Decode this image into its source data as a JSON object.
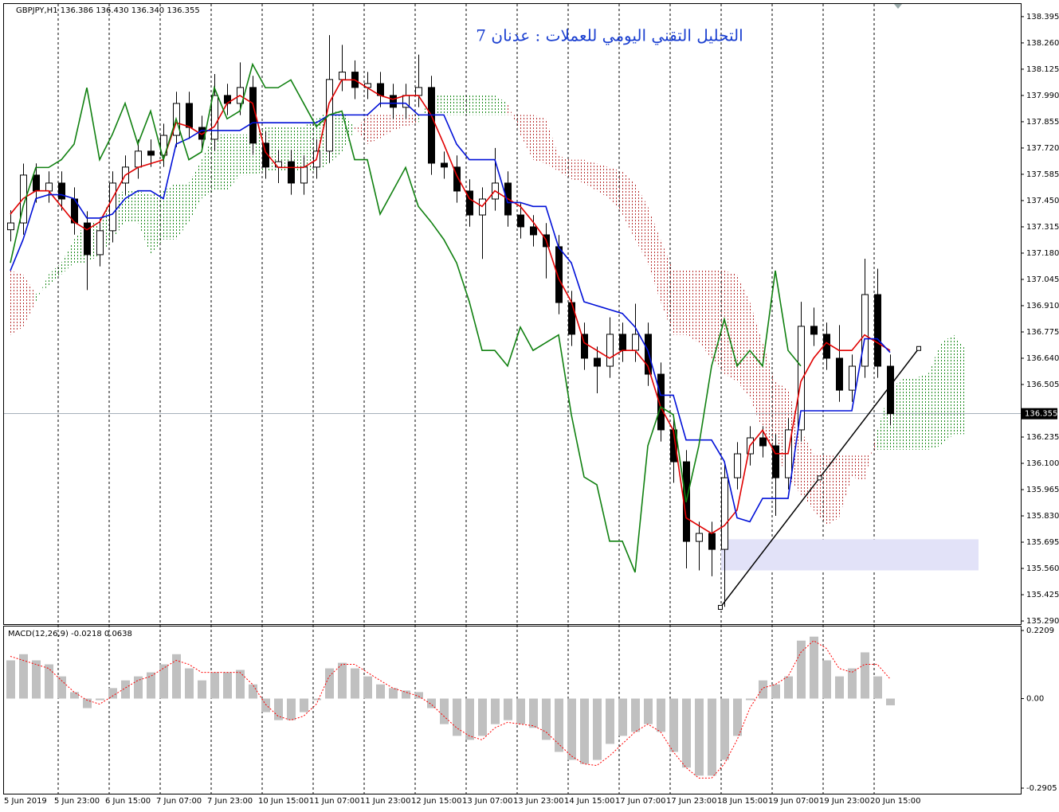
{
  "chart_data": [
    {
      "type": "candlestick",
      "title": "التحليل التقني اليومي للعملات : عدنان 7",
      "header": "GBPJPY,H1  136.386 136.430 136.340 136.355",
      "x_labels": [
        "5 Jun 2019",
        "5 Jun 23:00",
        "6 Jun 15:00",
        "7 Jun 07:00",
        "7 Jun 23:00",
        "10 Jun 15:00",
        "11 Jun 07:00",
        "11 Jun 23:00",
        "12 Jun 15:00",
        "13 Jun 07:00",
        "13 Jun 23:00",
        "14 Jun 15:00",
        "17 Jun 07:00",
        "17 Jun 23:00",
        "18 Jun 15:00",
        "19 Jun 07:00",
        "19 Jun 23:00",
        "20 Jun 15:00"
      ],
      "open": [
        137.3,
        137.335,
        137.581,
        137.499,
        137.54,
        137.458,
        137.335,
        137.172,
        137.295,
        137.54,
        137.622,
        137.704,
        137.683,
        137.785,
        137.949,
        137.826,
        137.765,
        137.99,
        137.949,
        138.031,
        137.745,
        137.622,
        137.65,
        137.54,
        137.622,
        137.704,
        138.072,
        138.11,
        138.031,
        138.051,
        137.99,
        137.929,
        137.99,
        138.031,
        137.642,
        137.622,
        137.499,
        137.376,
        137.458,
        137.54,
        137.376,
        137.315,
        137.274,
        137.213,
        136.926,
        136.763,
        136.64,
        136.599,
        136.763,
        136.681,
        136.763,
        136.558,
        136.272,
        136.108,
        135.699,
        135.74,
        135.658,
        136.026,
        136.149,
        136.231,
        136.19,
        136.026,
        136.272,
        136.804,
        136.763,
        136.64,
        136.476,
        136.599,
        136.967,
        136.599
      ],
      "high": [
        137.4,
        137.64,
        137.641,
        137.6,
        137.6,
        137.518,
        137.395,
        137.355,
        137.6,
        137.682,
        137.764,
        137.764,
        137.845,
        138.009,
        138.009,
        137.886,
        138.1,
        138.05,
        138.16,
        138.091,
        137.805,
        137.71,
        137.71,
        137.682,
        137.764,
        138.3,
        138.25,
        138.17,
        138.111,
        138.111,
        138.05,
        138.05,
        138.2,
        138.091,
        137.702,
        137.682,
        137.559,
        137.518,
        137.72,
        137.6,
        137.436,
        137.375,
        137.334,
        137.273,
        136.986,
        136.823,
        136.7,
        136.85,
        136.823,
        136.92,
        136.823,
        136.618,
        136.332,
        136.168,
        135.8,
        135.8,
        136.1,
        136.209,
        136.291,
        136.291,
        136.25,
        136.332,
        136.93,
        136.9,
        136.823,
        136.81,
        136.659,
        137.151,
        137.1,
        136.659
      ],
      "low": [
        137.24,
        137.275,
        137.439,
        137.439,
        137.398,
        137.275,
        136.99,
        137.112,
        137.235,
        137.48,
        137.562,
        137.623,
        137.623,
        137.725,
        137.766,
        137.705,
        137.705,
        137.889,
        137.889,
        137.685,
        137.562,
        137.54,
        137.48,
        137.48,
        137.562,
        137.644,
        138.012,
        137.971,
        137.971,
        137.93,
        137.869,
        137.869,
        137.93,
        137.582,
        137.562,
        137.439,
        137.316,
        137.15,
        137.398,
        137.316,
        137.255,
        137.214,
        137.05,
        136.866,
        136.703,
        136.58,
        136.46,
        136.539,
        136.621,
        136.621,
        136.498,
        136.212,
        136.0,
        135.56,
        135.55,
        135.52,
        135.363,
        135.966,
        136.089,
        136.13,
        135.83,
        135.966,
        136.212,
        136.703,
        136.58,
        136.416,
        136.416,
        136.539,
        136.539,
        136.295
      ],
      "close": [
        137.335,
        137.581,
        137.499,
        137.54,
        137.458,
        137.335,
        137.172,
        137.295,
        137.54,
        137.622,
        137.704,
        137.683,
        137.785,
        137.949,
        137.826,
        137.765,
        137.99,
        137.949,
        138.031,
        137.745,
        137.622,
        137.65,
        137.54,
        137.622,
        137.704,
        138.072,
        138.11,
        138.031,
        138.051,
        137.99,
        137.929,
        137.99,
        138.031,
        137.642,
        137.622,
        137.499,
        137.376,
        137.458,
        137.54,
        137.376,
        137.315,
        137.274,
        137.213,
        136.926,
        136.763,
        136.64,
        136.599,
        136.763,
        136.681,
        136.763,
        136.558,
        136.272,
        136.108,
        135.699,
        135.74,
        135.658,
        136.026,
        136.149,
        136.231,
        136.19,
        136.026,
        136.272,
        136.804,
        136.763,
        136.64,
        136.476,
        136.599,
        136.967,
        136.599,
        136.355
      ],
      "series": [
        {
          "color": "#e00000",
          "values": [
            137.38,
            137.46,
            137.5,
            137.5,
            137.42,
            137.34,
            137.3,
            137.34,
            137.46,
            137.58,
            137.62,
            137.64,
            137.66,
            137.85,
            137.83,
            137.79,
            137.83,
            137.95,
            137.99,
            137.95,
            137.7,
            137.62,
            137.62,
            137.62,
            137.66,
            137.95,
            138.07,
            138.07,
            138.03,
            137.99,
            137.97,
            137.99,
            137.99,
            137.89,
            137.74,
            137.58,
            137.46,
            137.42,
            137.5,
            137.46,
            137.42,
            137.34,
            137.25,
            137.05,
            136.93,
            136.72,
            136.68,
            136.64,
            136.68,
            136.68,
            136.6,
            136.39,
            136.27,
            135.82,
            135.78,
            135.74,
            135.78,
            135.86,
            136.19,
            136.27,
            136.15,
            136.15,
            136.52,
            136.64,
            136.72,
            136.68,
            136.68,
            136.76,
            136.72,
            136.68
          ]
        },
        {
          "color": "#0010d8",
          "values": [
            137.09,
            137.25,
            137.46,
            137.48,
            137.48,
            137.46,
            137.36,
            137.36,
            137.38,
            137.46,
            137.5,
            137.5,
            137.46,
            137.74,
            137.77,
            137.81,
            137.81,
            137.81,
            137.81,
            137.85,
            137.85,
            137.85,
            137.85,
            137.85,
            137.85,
            137.89,
            137.89,
            137.89,
            137.89,
            137.95,
            137.95,
            137.95,
            137.89,
            137.89,
            137.89,
            137.74,
            137.66,
            137.66,
            137.66,
            137.44,
            137.44,
            137.42,
            137.42,
            137.21,
            137.13,
            136.93,
            136.91,
            136.89,
            136.87,
            136.8,
            136.68,
            136.45,
            136.45,
            136.22,
            136.22,
            136.22,
            136.11,
            135.82,
            135.8,
            135.92,
            135.92,
            135.92,
            136.37,
            136.37,
            136.37,
            136.37,
            136.37,
            136.74,
            136.74,
            136.67
          ]
        },
        {
          "color": "#108010",
          "values": [
            137.13,
            137.42,
            137.62,
            137.62,
            137.66,
            137.74,
            138.03,
            137.66,
            137.79,
            137.95,
            137.74,
            137.91,
            137.66,
            137.87,
            137.66,
            137.7,
            138.03,
            137.87,
            137.91,
            138.15,
            138.03,
            138.03,
            138.07,
            137.95,
            137.83,
            137.89,
            137.91,
            137.66,
            137.66,
            137.38,
            137.5,
            137.62,
            137.42,
            137.34,
            137.25,
            137.13,
            136.93,
            136.68,
            136.68,
            136.6,
            136.8,
            136.68,
            136.72,
            136.76,
            136.35,
            136.03,
            135.99,
            135.7,
            135.7,
            135.54,
            136.19,
            136.39,
            136.35,
            135.9,
            136.19,
            136.6,
            136.84,
            136.6,
            136.68,
            136.6,
            137.09,
            136.68,
            136.6,
            null,
            null,
            null,
            null,
            null,
            null,
            null
          ]
        }
      ],
      "cloud": {
        "span_a": [
          136.76,
          136.8,
          136.93,
          137.07,
          137.13,
          137.25,
          137.34,
          137.34,
          137.48,
          137.5,
          137.5,
          137.48,
          137.5,
          137.54,
          137.54,
          137.66,
          137.79,
          137.79,
          137.79,
          137.79,
          137.83,
          137.83,
          137.83,
          137.83,
          137.87,
          137.91,
          137.91,
          137.83,
          137.74,
          137.77,
          137.81,
          137.83,
          137.85,
          137.99,
          137.99,
          137.99,
          137.99,
          137.99,
          137.99,
          137.95,
          137.79,
          137.66,
          137.64,
          137.6,
          137.56,
          137.54,
          137.5,
          137.46,
          137.38,
          137.25,
          137.13,
          136.93,
          136.76,
          136.76,
          136.72,
          136.64,
          136.56,
          136.52,
          136.44,
          136.27,
          136.15,
          136.03,
          135.94,
          135.86,
          135.78,
          135.82,
          136.03,
          136.01,
          136.27,
          136.48,
          136.54,
          136.54,
          136.56,
          136.72,
          136.76,
          136.68
        ],
        "span_b": [
          137.09,
          137.07,
          136.97,
          137.01,
          137.07,
          137.13,
          137.13,
          137.17,
          137.25,
          137.34,
          137.34,
          137.17,
          137.25,
          137.25,
          137.34,
          137.46,
          137.5,
          137.5,
          137.58,
          137.58,
          137.6,
          137.6,
          137.6,
          137.6,
          137.6,
          137.64,
          137.7,
          137.81,
          137.89,
          137.89,
          137.89,
          137.89,
          137.89,
          137.89,
          137.89,
          137.89,
          137.89,
          137.89,
          137.89,
          137.89,
          137.89,
          137.89,
          137.87,
          137.68,
          137.66,
          137.66,
          137.64,
          137.62,
          137.6,
          137.54,
          137.42,
          137.25,
          137.09,
          137.09,
          137.09,
          137.09,
          137.09,
          137.07,
          136.93,
          136.72,
          136.52,
          136.48,
          136.27,
          136.15,
          136.14,
          136.14,
          136.14,
          136.14,
          136.17,
          136.17,
          136.17,
          136.17,
          136.17,
          136.19,
          136.25,
          136.25
        ],
        "up_color": "#1a8a1a",
        "down_color": "#b83030"
      },
      "zone": {
        "low": 135.55,
        "high": 135.71,
        "color": "#e2e2f8"
      },
      "trendline": {
        "start": 135.36,
        "end": 136.69,
        "color": "#000000"
      },
      "last_price": 136.355,
      "ylim": [
        135.278,
        138.46
      ],
      "yticks": [
        138.395,
        {
          "value": 138.26,
          "label": "138.260"
        },
        138.125,
        {
          "value": 137.99,
          "label": "137.990"
        },
        137.855,
        {
          "value": 137.72,
          "label": "137.720"
        },
        137.585,
        {
          "value": 137.45,
          "label": "137.450"
        },
        137.315,
        {
          "value": 137.18,
          "label": "137.180"
        },
        137.045,
        {
          "value": 136.91,
          "label": "136.910"
        },
        136.775,
        {
          "value": 136.64,
          "label": "136.640"
        },
        136.505,
        136.235,
        {
          "value": 136.1,
          "label": "136.100"
        },
        135.965,
        {
          "value": 135.83,
          "label": "135.830"
        },
        135.695,
        {
          "value": 135.56,
          "label": "135.560"
        },
        135.425,
        {
          "value": 135.29,
          "label": "135.290"
        }
      ],
      "grid": true
    },
    {
      "type": "macd",
      "label": "MACD(12,26,9) -0.0218 0.0638",
      "values": [
        0.124,
        0.144,
        0.124,
        0.111,
        0.072,
        0.021,
        -0.031,
        -0.005,
        0.034,
        0.059,
        0.072,
        0.085,
        0.111,
        0.144,
        0.098,
        0.059,
        0.085,
        0.085,
        0.093,
        0.046,
        -0.044,
        -0.07,
        -0.07,
        -0.044,
        -0.005,
        0.098,
        0.116,
        0.098,
        0.072,
        0.046,
        0.034,
        0.026,
        0.021,
        -0.031,
        -0.083,
        -0.121,
        -0.134,
        -0.121,
        -0.083,
        -0.07,
        -0.083,
        -0.095,
        -0.134,
        -0.173,
        -0.199,
        -0.212,
        -0.199,
        -0.147,
        -0.121,
        -0.108,
        -0.083,
        -0.108,
        -0.173,
        -0.224,
        -0.25,
        -0.25,
        -0.199,
        -0.121,
        -0.005,
        0.059,
        0.046,
        0.072,
        0.188,
        0.201,
        0.124,
        0.072,
        0.098,
        0.15,
        0.072,
        -0.0218
      ],
      "signal": [
        0.137,
        0.124,
        0.111,
        0.098,
        0.059,
        0.021,
        -0.005,
        -0.018,
        0.008,
        0.034,
        0.059,
        0.072,
        0.098,
        0.124,
        0.111,
        0.085,
        0.085,
        0.085,
        0.085,
        0.046,
        -0.018,
        -0.057,
        -0.07,
        -0.057,
        -0.018,
        0.072,
        0.111,
        0.111,
        0.085,
        0.059,
        0.034,
        0.021,
        0.008,
        -0.018,
        -0.057,
        -0.095,
        -0.121,
        -0.134,
        -0.095,
        -0.077,
        -0.083,
        -0.088,
        -0.108,
        -0.147,
        -0.186,
        -0.212,
        -0.217,
        -0.186,
        -0.147,
        -0.108,
        -0.083,
        -0.108,
        -0.173,
        -0.224,
        -0.258,
        -0.258,
        -0.212,
        -0.134,
        -0.031,
        0.034,
        0.046,
        0.072,
        0.15,
        0.188,
        0.163,
        0.098,
        0.085,
        0.111,
        0.111,
        0.0638
      ],
      "color": "#c0c0c0",
      "signal_color": "#ff0000",
      "ylim": [
        -0.3086,
        0.2338
      ],
      "yticks": [
        0.2209,
        {
          "value": 0,
          "label": "0.00"
        },
        -0.2905
      ]
    }
  ]
}
